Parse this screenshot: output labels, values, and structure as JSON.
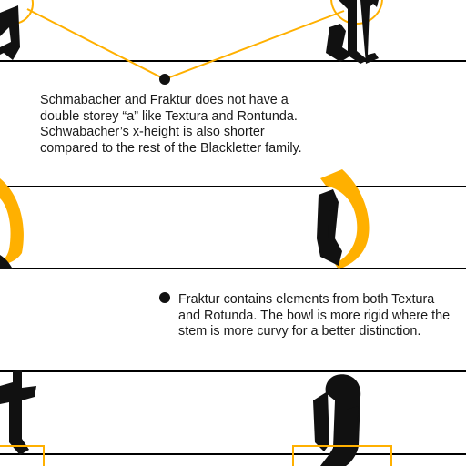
{
  "colors": {
    "ink": "#111111",
    "accent": "#ffb000",
    "rule": "#000000",
    "background": "#ffffff"
  },
  "notes": {
    "note1": {
      "lines": [
        "Schmabacher and Fraktur does not have a",
        "double storey “a” like Textura and Rontunda.",
        "Schwabacher’s x-height is also shorter",
        "compared to the rest of the Blackletter family."
      ]
    },
    "note2": {
      "lines": [
        "Fraktur contains elements from both Textura",
        "and Rotunda. The bowl is more rigid where the",
        "stem is more curvy for a better distinction."
      ]
    }
  }
}
